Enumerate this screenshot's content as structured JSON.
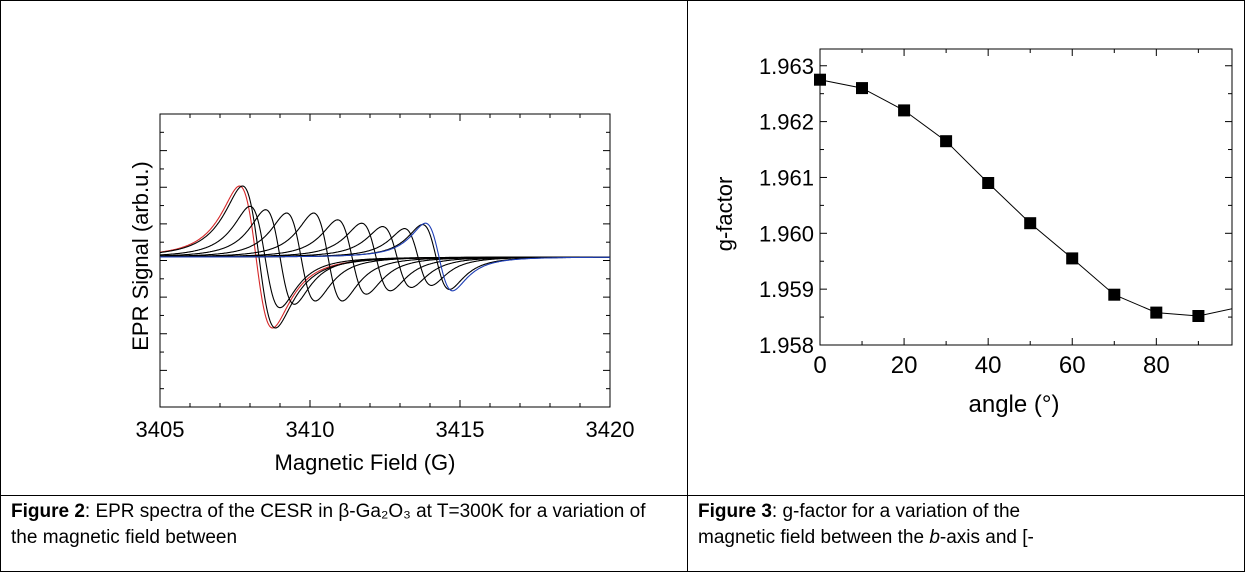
{
  "figure2": {
    "chart_data": {
      "type": "line",
      "xlabel": "Magnetic Field (G)",
      "ylabel": "EPR Signal (arb.u.)",
      "xlim": [
        3405,
        3420
      ],
      "x_ticks": [
        3405,
        3410,
        3415,
        3420
      ],
      "y_tick_labels": "none",
      "grid": false,
      "series_centers_G": [
        3408.2,
        3408.3,
        3408.5,
        3409.0,
        3409.7,
        3410.6,
        3411.4,
        3412.2,
        3412.9,
        3413.6,
        3414.2,
        3414.3
      ],
      "series_colors": [
        "#d62728",
        "#000000",
        "#000000",
        "#000000",
        "#000000",
        "#000000",
        "#000000",
        "#000000",
        "#000000",
        "#000000",
        "#000000",
        "#1f3fb5"
      ],
      "series_amplitudes": [
        1.05,
        1.05,
        0.75,
        0.7,
        0.65,
        0.65,
        0.55,
        0.5,
        0.45,
        0.42,
        0.48,
        0.5
      ],
      "series_widths_G": [
        0.55,
        0.55,
        0.5,
        0.48,
        0.48,
        0.48,
        0.48,
        0.48,
        0.48,
        0.45,
        0.45,
        0.45
      ]
    },
    "caption_label": "Figure 2",
    "caption_text": ": EPR spectra of the CESR in β-Ga₂O₃ at T=300K for a variation of the magnetic field between"
  },
  "figure3": {
    "chart_data": {
      "type": "scatter",
      "xlabel": "angle (°)",
      "ylabel": "g-factor",
      "xlim": [
        0,
        98
      ],
      "ylim": [
        1.958,
        1.9633
      ],
      "x_ticks": [
        0,
        20,
        40,
        60,
        80
      ],
      "y_ticks": [
        "1.958",
        "1.959",
        "1.960",
        "1.961",
        "1.962",
        "1.963"
      ],
      "grid": false,
      "marker": "square",
      "connected": true,
      "x": [
        0,
        10,
        20,
        30,
        40,
        50,
        60,
        70,
        80,
        90,
        100
      ],
      "y": [
        1.96275,
        1.9626,
        1.9622,
        1.96165,
        1.9609,
        1.96018,
        1.95955,
        1.9589,
        1.95858,
        1.95852,
        1.95868
      ]
    },
    "caption_label": "Figure 3",
    "caption_text_a": ": g-factor for a variation of the",
    "caption_text_b": "magnetic field between the ",
    "caption_italic": "b",
    "caption_text_c": "-axis and [-"
  }
}
